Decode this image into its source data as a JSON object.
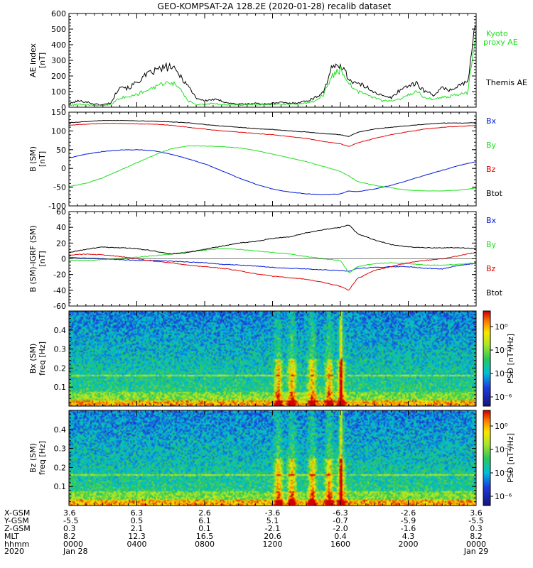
{
  "title": "GEO-KOMPSAT-2A 128.2E (2020-01-28) recalib dataset",
  "colors": {
    "black": "#000000",
    "red": "#e00000",
    "green": "#20e020",
    "blue": "#0018d8"
  },
  "chart_data": [
    {
      "id": "ae",
      "type": "line",
      "ylabel": [
        "AE index",
        "[nT]"
      ],
      "ylim": [
        0,
        600
      ],
      "yticks": [
        "600",
        "500",
        "400",
        "300",
        "200",
        "100",
        "0"
      ],
      "x_hours": [
        0,
        0.5,
        1,
        1.5,
        2,
        2.5,
        3,
        3.5,
        4,
        4.5,
        5,
        5.5,
        6,
        6.5,
        7,
        7.5,
        8,
        8.5,
        9,
        9.5,
        10,
        10.5,
        11,
        11.5,
        12,
        12.5,
        13,
        13.5,
        14,
        14.5,
        15,
        15.5,
        16,
        16.5,
        17,
        17.5,
        18,
        18.5,
        19,
        19.5,
        20,
        20.5,
        21,
        21.5,
        22,
        22.5,
        23,
        23.5,
        24
      ],
      "series": [
        {
          "name": "Themis AE",
          "color": "black",
          "values": [
            20,
            40,
            35,
            20,
            15,
            30,
            140,
            120,
            160,
            200,
            230,
            250,
            260,
            210,
            140,
            60,
            40,
            50,
            40,
            25,
            20,
            20,
            25,
            20,
            25,
            30,
            25,
            30,
            40,
            60,
            100,
            250,
            280,
            180,
            150,
            130,
            100,
            70,
            60,
            110,
            140,
            150,
            100,
            80,
            120,
            110,
            140,
            160,
            550
          ]
        },
        {
          "name": "Kyoto proxy AE",
          "color": "green",
          "values": [
            10,
            20,
            15,
            12,
            10,
            20,
            60,
            70,
            80,
            110,
            120,
            150,
            160,
            130,
            40,
            20,
            20,
            25,
            20,
            15,
            15,
            15,
            18,
            15,
            18,
            20,
            18,
            20,
            25,
            40,
            80,
            200,
            240,
            150,
            100,
            80,
            60,
            40,
            40,
            50,
            80,
            100,
            60,
            50,
            60,
            70,
            80,
            90,
            480
          ]
        }
      ]
    },
    {
      "id": "bsm",
      "type": "line",
      "ylabel": [
        "B (SM)",
        "[nT]"
      ],
      "ylim": [
        -100,
        150
      ],
      "yticks": [
        "150",
        "100",
        "50",
        "0",
        "-50",
        "-100"
      ],
      "x_hours": [
        0,
        1,
        2,
        3,
        4,
        5,
        6,
        7,
        8,
        9,
        10,
        11,
        12,
        13,
        14,
        15,
        16,
        16.5,
        17,
        18,
        19,
        20,
        21,
        22,
        23,
        24
      ],
      "series": [
        {
          "name": "Bx",
          "color": "blue",
          "values": [
            28,
            38,
            45,
            49,
            50,
            47,
            38,
            26,
            12,
            -6,
            -25,
            -42,
            -55,
            -63,
            -68,
            -70,
            -68,
            -60,
            -62,
            -55,
            -45,
            -32,
            -18,
            -5,
            8,
            18
          ]
        },
        {
          "name": "By",
          "color": "green",
          "values": [
            -48,
            -40,
            -25,
            -5,
            15,
            35,
            52,
            60,
            60,
            58,
            55,
            48,
            38,
            28,
            18,
            5,
            -8,
            -20,
            -35,
            -45,
            -52,
            -58,
            -60,
            -60,
            -58,
            -52
          ]
        },
        {
          "name": "Bz",
          "color": "red",
          "values": [
            115,
            118,
            120,
            120,
            119,
            118,
            115,
            110,
            105,
            100,
            97,
            93,
            90,
            85,
            80,
            72,
            66,
            58,
            68,
            80,
            90,
            98,
            105,
            110,
            112,
            115
          ]
        },
        {
          "name": "Btot",
          "color": "black",
          "values": [
            122,
            125,
            128,
            128,
            127,
            126,
            124,
            122,
            117,
            113,
            110,
            106,
            104,
            100,
            97,
            93,
            90,
            85,
            96,
            105,
            110,
            114,
            118,
            121,
            121,
            122
          ]
        }
      ]
    },
    {
      "id": "bigrf",
      "type": "line",
      "ylabel": [
        "B (SM)-IGRF (SM)",
        "[nT]"
      ],
      "ylim": [
        -60,
        60
      ],
      "yticks": [
        "60",
        "40",
        "20",
        "0",
        "-20",
        "-40",
        "-60"
      ],
      "x_hours": [
        0,
        1,
        2,
        3,
        4,
        5,
        6,
        7,
        8,
        9,
        10,
        11,
        12,
        13,
        14,
        15,
        16,
        16.5,
        17,
        18,
        19,
        20,
        21,
        22,
        23,
        24
      ],
      "series": [
        {
          "name": "Bx",
          "color": "blue",
          "values": [
            2,
            1,
            0,
            -1,
            -2,
            -2,
            -3,
            -4,
            -5,
            -7,
            -8,
            -9,
            -11,
            -12,
            -13,
            -14,
            -15,
            -16,
            -12,
            -11,
            -10,
            -10,
            -12,
            -13,
            -8,
            -6
          ]
        },
        {
          "name": "By",
          "color": "green",
          "values": [
            -2,
            -2,
            -1,
            0,
            2,
            4,
            6,
            9,
            11,
            13,
            12,
            10,
            8,
            6,
            3,
            0,
            -2,
            -18,
            -10,
            -6,
            -5,
            -6,
            -8,
            -8,
            -7,
            -5
          ]
        },
        {
          "name": "Bz",
          "color": "red",
          "values": [
            5,
            6,
            5,
            3,
            0,
            -3,
            -5,
            -8,
            -10,
            -12,
            -15,
            -19,
            -22,
            -24,
            -26,
            -30,
            -35,
            -40,
            -25,
            -15,
            -10,
            -5,
            -2,
            0,
            4,
            8
          ]
        },
        {
          "name": "Btot",
          "color": "black",
          "values": [
            8,
            12,
            15,
            14,
            13,
            10,
            6,
            8,
            12,
            16,
            20,
            22,
            26,
            28,
            33,
            37,
            40,
            43,
            32,
            24,
            18,
            15,
            14,
            14,
            14,
            13
          ]
        }
      ]
    },
    {
      "id": "bxspec",
      "type": "heatmap",
      "ylabel": [
        "Bx (SM)",
        "freq [Hz]"
      ],
      "ylim": [
        0,
        0.5
      ],
      "yticks": [
        "0.4",
        "0.3",
        "0.2",
        "0.1"
      ],
      "colorbar": {
        "label": "PSD [nT²/Hz]",
        "ticks": [
          "10⁰",
          "10⁻²",
          "10⁻⁴",
          "10⁻⁶"
        ]
      },
      "line_freq_hz": 0.165,
      "burst_hours": [
        12.3,
        13.1,
        14.3,
        15.3,
        16.0
      ]
    },
    {
      "id": "bzspec",
      "type": "heatmap",
      "ylabel": [
        "Bz (SM)",
        "freq [Hz]"
      ],
      "ylim": [
        0,
        0.5
      ],
      "yticks": [
        "0.4",
        "0.3",
        "0.2",
        "0.1"
      ],
      "colorbar": {
        "label": "PSD [nT²/Hz]",
        "ticks": [
          "10⁰",
          "10⁻²",
          "10⁻⁴",
          "10⁻⁶"
        ]
      },
      "line_freq_hz": 0.165,
      "burst_hours": [
        12.3,
        13.1,
        14.3,
        15.3,
        16.0
      ]
    }
  ],
  "legend": {
    "ae": [
      "Kyoto",
      "proxy AE",
      "Themis AE"
    ],
    "b": [
      "Bx",
      "By",
      "Bz",
      "Btot"
    ]
  },
  "ephemeris": {
    "row_labels": [
      "X-GSM",
      "Y-GSM",
      "Z-GSM",
      "MLT",
      "hhmm",
      "2020"
    ],
    "columns": [
      [
        "3.6",
        "-5.5",
        "0.3",
        "8.2",
        "0000",
        "Jan 28"
      ],
      [
        "6.3",
        "0.5",
        "2.1",
        "12.3",
        "0400",
        ""
      ],
      [
        "2.6",
        "6.1",
        "0.1",
        "16.5",
        "0800",
        ""
      ],
      [
        "-3.6",
        "5.1",
        "-2.1",
        "20.6",
        "1200",
        ""
      ],
      [
        "-6.3",
        "-0.7",
        "-2.0",
        "0.4",
        "1600",
        ""
      ],
      [
        "-2.6",
        "-5.9",
        "-1.6",
        "4.3",
        "2000",
        ""
      ],
      [
        "3.6",
        "-5.5",
        "0.3",
        "8.2",
        "0000",
        "Jan 29"
      ]
    ]
  }
}
